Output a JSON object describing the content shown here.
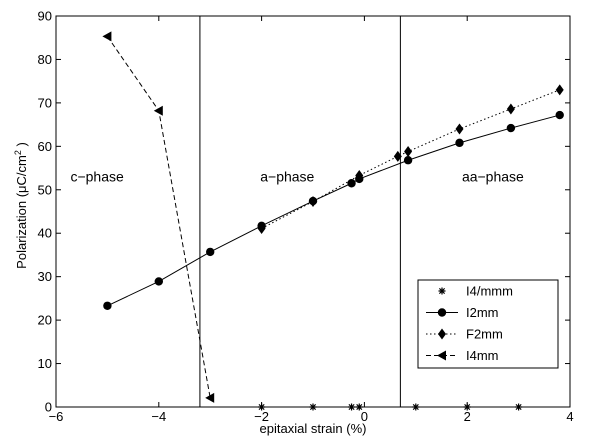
{
  "chart_data": {
    "type": "line",
    "xlabel": "epitaxial strain (%)",
    "ylabel_main": "Polarization (μC/cm",
    "ylabel_sup": "2",
    "ylabel_close": " )",
    "xlim": [
      -6,
      4
    ],
    "ylim": [
      0,
      90
    ],
    "xticks": [
      -6,
      -4,
      -2,
      0,
      2,
      4
    ],
    "yticks": [
      0,
      10,
      20,
      30,
      40,
      50,
      60,
      70,
      80,
      90
    ],
    "grid": false,
    "legend_position": "lower-right",
    "phase_boundaries": [
      -3.2,
      0.7
    ],
    "annotations": [
      {
        "text": "c−phase",
        "x": -5.2,
        "y": 53
      },
      {
        "text": "a−phase",
        "x": -1.5,
        "y": 53
      },
      {
        "text": "aa−phase",
        "x": 2.5,
        "y": 53
      }
    ],
    "series": [
      {
        "name": "I4/mmm",
        "marker": "star",
        "line": "none",
        "x": [
          -2,
          -1,
          -0.25,
          -0.1,
          1,
          2,
          3
        ],
        "y": [
          0,
          0,
          0,
          0,
          0,
          0,
          0
        ]
      },
      {
        "name": "I2mm",
        "marker": "circle",
        "line": "solid",
        "x": [
          -5,
          -4,
          -3,
          -2,
          -1,
          -0.25,
          -0.1,
          0.85,
          1.85,
          2.85,
          3.8
        ],
        "y": [
          23.3,
          28.9,
          35.7,
          41.7,
          47.4,
          51.5,
          52.5,
          56.8,
          60.8,
          64.2,
          67.2
        ]
      },
      {
        "name": "F2mm",
        "marker": "diamond",
        "line": "dotted",
        "x": [
          -2,
          -1,
          -0.1,
          0.65,
          0.85,
          1.85,
          2.85,
          3.8
        ],
        "y": [
          41.1,
          47.3,
          53.3,
          57.7,
          58.8,
          64.0,
          68.6,
          73.0
        ]
      },
      {
        "name": "I4mm",
        "marker": "triangle-left",
        "line": "dashed",
        "x": [
          -5,
          -4,
          -3
        ],
        "y": [
          85.3,
          68.2,
          2.1
        ]
      }
    ]
  }
}
